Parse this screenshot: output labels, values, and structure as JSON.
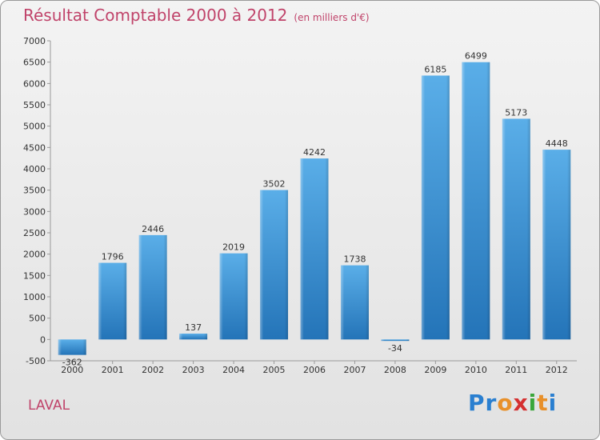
{
  "header": {
    "title": "Résultat Comptable 2000 à 2012",
    "subtitle": "(en milliers d'€)"
  },
  "footer": {
    "place": "LAVAL"
  },
  "logo": {
    "letters": [
      {
        "ch": "P",
        "color": "#2a7fd0"
      },
      {
        "ch": "r",
        "color": "#2a7fd0"
      },
      {
        "ch": "o",
        "color": "#e8902a"
      },
      {
        "ch": "x",
        "color": "#d53030"
      },
      {
        "ch": "i",
        "color": "#3aa63a"
      },
      {
        "ch": "t",
        "color": "#e8902a"
      },
      {
        "ch": "i",
        "color": "#2a7fd0"
      }
    ]
  },
  "chart_data": {
    "type": "bar",
    "title": "Résultat Comptable 2000 à 2012",
    "subtitle": "(en milliers d'€)",
    "categories": [
      "2000",
      "2001",
      "2002",
      "2003",
      "2004",
      "2005",
      "2006",
      "2007",
      "2008",
      "2009",
      "2010",
      "2011",
      "2012"
    ],
    "values": [
      -362,
      1796,
      2446,
      137,
      2019,
      3502,
      4242,
      1738,
      -34,
      6185,
      6499,
      5173,
      4448
    ],
    "ylim": [
      -500,
      7000
    ],
    "yticks": [
      -500,
      0,
      500,
      1000,
      1500,
      2000,
      2500,
      3000,
      3500,
      4000,
      4500,
      5000,
      5500,
      6000,
      6500,
      7000
    ],
    "grid": false,
    "bar_color": "#3b90d8"
  }
}
